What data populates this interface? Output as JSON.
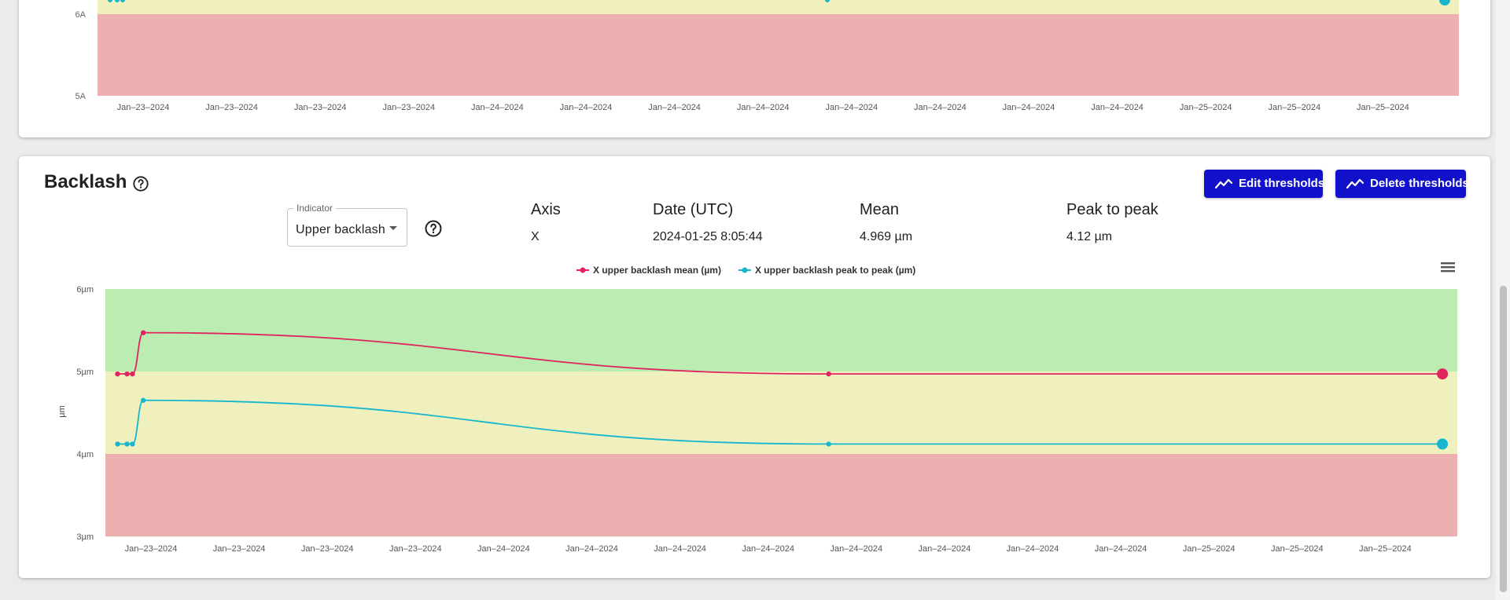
{
  "colors": {
    "green_band": "#bbedb3",
    "yellow_band": "#eff0bd",
    "red_band": "#ecb0b0",
    "mean_series": "#e0245e",
    "peak_series": "#17b6cf",
    "button_bg": "#1111cc"
  },
  "top_chart": {
    "y_ticks": [
      "6A",
      "5A"
    ],
    "x_ticks": [
      "Jan–23–2024",
      "Jan–23–2024",
      "Jan–23–2024",
      "Jan–23–2024",
      "Jan–24–2024",
      "Jan–24–2024",
      "Jan–24–2024",
      "Jan–24–2024",
      "Jan–24–2024",
      "Jan–24–2024",
      "Jan–24–2024",
      "Jan–24–2024",
      "Jan–25–2024",
      "Jan–25–2024",
      "Jan–25–2024"
    ]
  },
  "backlash": {
    "title": "Backlash",
    "help_icon": "question-circle-icon",
    "indicator": {
      "label": "Indicator",
      "value": "Upper backlash"
    },
    "stats": {
      "headers": {
        "axis": "Axis",
        "date": "Date (UTC)",
        "mean": "Mean",
        "peak": "Peak to peak"
      },
      "values": {
        "axis": "X",
        "date": "2024-01-25 8:05:44",
        "mean": "4.969 µm",
        "peak": "4.12 µm"
      }
    },
    "buttons": {
      "edit": "Edit thresholds",
      "delete": "Delete thresholds"
    },
    "menu_icon": "hamburger-menu-icon"
  },
  "chart_data": {
    "type": "line",
    "ylabel": "µm",
    "ylim": [
      3,
      6
    ],
    "y_ticks": [
      "6µm",
      "5µm",
      "4µm",
      "3µm"
    ],
    "x_ticks": [
      "Jan–23–2024",
      "Jan–23–2024",
      "Jan–23–2024",
      "Jan–23–2024",
      "Jan–24–2024",
      "Jan–24–2024",
      "Jan–24–2024",
      "Jan–24–2024",
      "Jan–24–2024",
      "Jan–24–2024",
      "Jan–24–2024",
      "Jan–24–2024",
      "Jan–25–2024",
      "Jan–25–2024",
      "Jan–25–2024"
    ],
    "legend_placement": "top-center",
    "threshold_bands": [
      {
        "from": 5,
        "to": 6,
        "level": "good"
      },
      {
        "from": 4,
        "to": 5,
        "level": "warning"
      },
      {
        "from": 3,
        "to": 4,
        "level": "bad"
      }
    ],
    "series": [
      {
        "name": "X upper backlash mean (µm)",
        "points": [
          {
            "x": 0.009,
            "y": 4.97
          },
          {
            "x": 0.016,
            "y": 4.97
          },
          {
            "x": 0.02,
            "y": 4.97
          },
          {
            "x": 0.028,
            "y": 5.47
          },
          {
            "x": 0.535,
            "y": 4.97
          },
          {
            "x": 0.989,
            "y": 4.97
          }
        ]
      },
      {
        "name": "X upper backlash peak to peak (µm)",
        "points": [
          {
            "x": 0.009,
            "y": 4.12
          },
          {
            "x": 0.016,
            "y": 4.12
          },
          {
            "x": 0.02,
            "y": 4.12
          },
          {
            "x": 0.028,
            "y": 4.65
          },
          {
            "x": 0.535,
            "y": 4.12
          },
          {
            "x": 0.989,
            "y": 4.12
          }
        ]
      }
    ]
  }
}
